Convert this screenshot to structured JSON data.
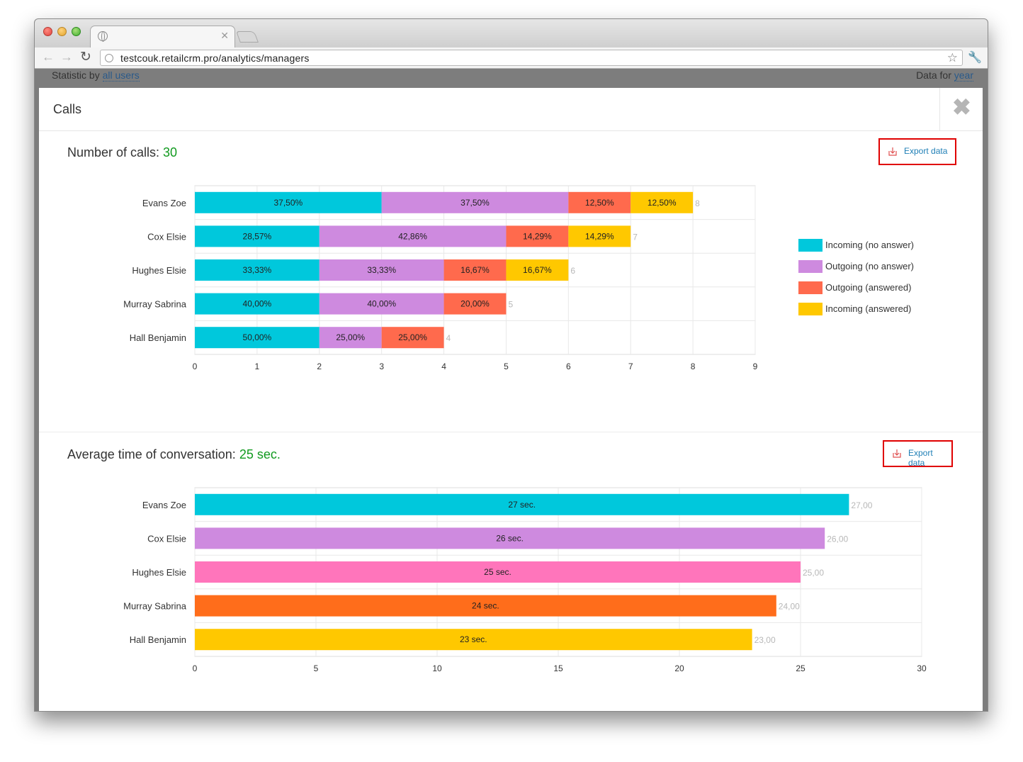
{
  "browser": {
    "url": "testcouk.retailcrm.pro/analytics/managers",
    "icons": [
      "back-arrow-icon",
      "forward-arrow-icon",
      "reload-icon",
      "globe-icon",
      "bookmark-star-icon",
      "wrench-icon",
      "close-tab-icon"
    ]
  },
  "background": {
    "left_prefix": "Statistic by ",
    "left_link": "all users",
    "right_prefix": "Data for ",
    "right_link": "year"
  },
  "modal": {
    "title": "Calls",
    "close_icon": "close-icon"
  },
  "calls_section": {
    "title": "Number of calls: ",
    "value": "30",
    "export_label": "Export data"
  },
  "time_section": {
    "title": "Average time of conversation: ",
    "value": "25 sec.",
    "export_label": "Export data"
  },
  "colors": {
    "incoming_no_answer": "#00c8dc",
    "outgoing_no_answer": "#ce8adf",
    "outgoing_answered": "#ff6a4d",
    "incoming_answered": "#ffc800",
    "green_value": "#119a1f",
    "export_border": "#e00000"
  },
  "chart_data": [
    {
      "type": "bar",
      "orientation": "horizontal",
      "stacked": true,
      "categories": [
        "Evans Zoe",
        "Cox Elsie",
        "Hughes Elsie",
        "Murray Sabrina",
        "Hall Benjamin"
      ],
      "series": [
        {
          "name": "Incoming (no answer)",
          "color": "#00c8dc",
          "values": [
            3,
            2,
            2,
            2,
            2
          ],
          "labels": [
            "37,50%",
            "28,57%",
            "33,33%",
            "40,00%",
            "50,00%"
          ]
        },
        {
          "name": "Outgoing (no answer)",
          "color": "#ce8adf",
          "values": [
            3,
            3,
            2,
            2,
            1
          ],
          "labels": [
            "37,50%",
            "42,86%",
            "33,33%",
            "40,00%",
            "25,00%"
          ]
        },
        {
          "name": "Outgoing (answered)",
          "color": "#ff6a4d",
          "values": [
            1,
            1,
            1,
            1,
            1
          ],
          "labels": [
            "12,50%",
            "14,29%",
            "16,67%",
            "20,00%",
            "25,00%"
          ]
        },
        {
          "name": "Incoming (answered)",
          "color": "#ffc800",
          "values": [
            1,
            1,
            1,
            0,
            0
          ],
          "labels": [
            "12,50%",
            "14,29%",
            "16,67%",
            "",
            ""
          ]
        }
      ],
      "totals": [
        "8",
        "7",
        "6",
        "5",
        "4"
      ],
      "xlim": [
        0,
        9
      ],
      "xticks": [
        "0",
        "1",
        "2",
        "3",
        "4",
        "5",
        "6",
        "7",
        "8",
        "9"
      ],
      "grid": true,
      "legend": "right"
    },
    {
      "type": "bar",
      "orientation": "horizontal",
      "categories": [
        "Evans Zoe",
        "Cox Elsie",
        "Hughes Elsie",
        "Murray Sabrina",
        "Hall Benjamin"
      ],
      "values": [
        27,
        26,
        25,
        24,
        23
      ],
      "colors": [
        "#00c8dc",
        "#ce8adf",
        "#ff75bb",
        "#ff6d1b",
        "#ffc800"
      ],
      "bar_labels": [
        "27 sec.",
        "26 sec.",
        "25 sec.",
        "24 sec.",
        "23 sec."
      ],
      "totals": [
        "27,00",
        "26,00",
        "25,00",
        "24,00",
        "23,00"
      ],
      "xlim": [
        0,
        30
      ],
      "xticks": [
        "0",
        "5",
        "10",
        "15",
        "20",
        "25",
        "30"
      ],
      "grid": true
    }
  ]
}
